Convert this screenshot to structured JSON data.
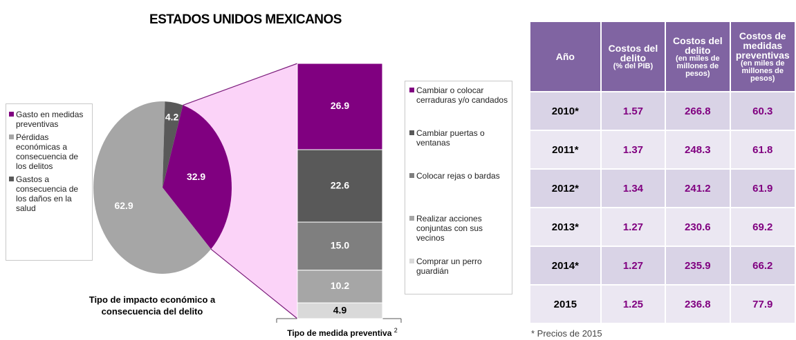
{
  "title": "ESTADOS UNIDOS MEXICANOS",
  "chart_data": [
    {
      "type": "pie",
      "xlabel": "Tipo de impacto económico a consecuencia del delito",
      "categories": [
        "Gasto en medidas preventivas",
        "Pérdidas económicas a consecuencia de los delitos",
        "Gastos a consecuencia de los daños en la salud"
      ],
      "values": [
        32.9,
        62.9,
        4.2
      ],
      "colors": [
        "#800080",
        "#a6a6a6",
        "#595959"
      ]
    },
    {
      "type": "stacked_bar",
      "xlabel": "Tipo de medida preventiva",
      "xlabel_note": "2",
      "categories": [
        "Cambiar o colocar cerraduras y/o candados",
        "Cambiar puertas o ventanas",
        "Colocar rejas o bardas",
        "Realizar acciones conjuntas con sus vecinos",
        "Comprar un perro guardián"
      ],
      "values": [
        26.9,
        22.6,
        15.0,
        10.2,
        4.9
      ],
      "value_labels": [
        "26.9",
        "22.6",
        "15.0",
        "10.2",
        "4.9"
      ],
      "colors": [
        "#800080",
        "#595959",
        "#7f7f7f",
        "#a6a6a6",
        "#d9d9d9"
      ]
    }
  ],
  "table": {
    "columns": [
      {
        "title": "Año"
      },
      {
        "title": "Costos del delito",
        "subtitle": "(% del PIB)"
      },
      {
        "title": "Costos del delito",
        "subtitle": "(en miles de millones de pesos)"
      },
      {
        "title": "Costos de medidas preventivas",
        "subtitle": "(en miles de millones de pesos)"
      }
    ],
    "rows": [
      [
        "2010*",
        "1.57",
        "266.8",
        "60.3"
      ],
      [
        "2011*",
        "1.37",
        "248.3",
        "61.8"
      ],
      [
        "2012*",
        "1.34",
        "241.2",
        "61.9"
      ],
      [
        "2013*",
        "1.27",
        "230.6",
        "69.2"
      ],
      [
        "2014*",
        "1.27",
        "235.9",
        "66.2"
      ],
      [
        "2015",
        "1.25",
        "236.8",
        "77.9"
      ]
    ],
    "footnote": "* Precios de 2015"
  }
}
